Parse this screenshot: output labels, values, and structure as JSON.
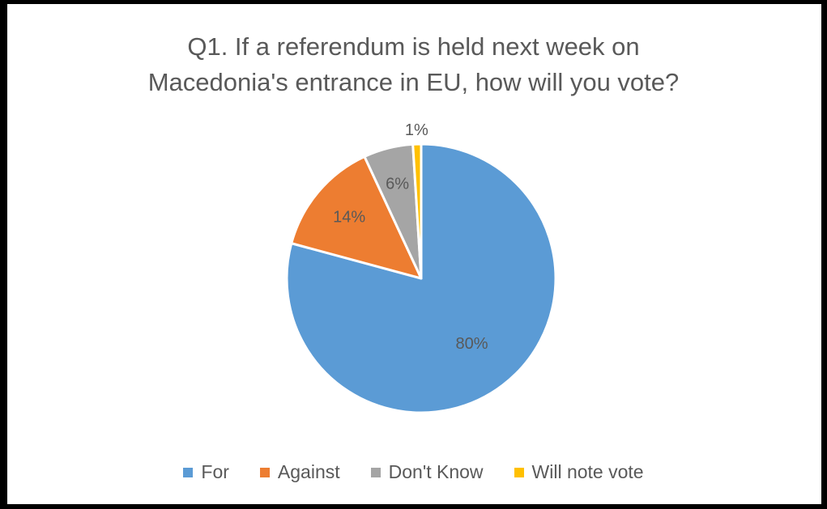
{
  "chart_data": {
    "type": "pie",
    "title_lines": [
      "Q1. If a referendum is held next week on",
      "Macedonia's entrance in EU, how will you vote?"
    ],
    "categories": [
      "For",
      "Against",
      "Don't Know",
      "Will note vote"
    ],
    "values": [
      80,
      14,
      6,
      1
    ],
    "labels": [
      "80%",
      "14%",
      "6%",
      "1%"
    ],
    "colors": [
      "#5B9BD5",
      "#ED7D31",
      "#A5A5A5",
      "#FFC000"
    ],
    "legend_position": "bottom"
  }
}
